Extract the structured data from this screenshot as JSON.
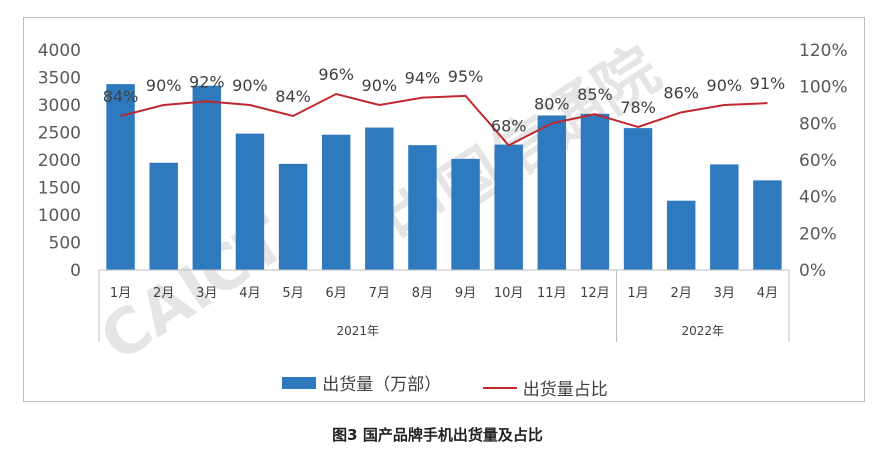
{
  "chart_data": {
    "type": "bar",
    "title": "",
    "caption": "图3   国产品牌手机出货量及占比",
    "categories": [
      "1月",
      "2月",
      "3月",
      "4月",
      "5月",
      "6月",
      "7月",
      "8月",
      "9月",
      "10月",
      "11月",
      "12月",
      "1月",
      "2月",
      "3月",
      "4月"
    ],
    "year_groups": [
      {
        "label": "2021年",
        "count": 12
      },
      {
        "label": "2022年",
        "count": 4
      }
    ],
    "series": [
      {
        "name": "出货量（万部）",
        "type": "bar",
        "axis": "left",
        "color": "#2f7abf",
        "values": [
          3380,
          1950,
          3350,
          2480,
          1930,
          2460,
          2590,
          2270,
          2020,
          2280,
          2810,
          2840,
          2580,
          1260,
          1920,
          1630
        ]
      },
      {
        "name": "出货量占比",
        "type": "line",
        "axis": "right",
        "color": "#c0282e",
        "values": [
          84,
          90,
          92,
          90,
          84,
          96,
          90,
          94,
          95,
          68,
          80,
          85,
          78,
          86,
          90,
          91
        ],
        "labels": [
          "84%",
          "90%",
          "92%",
          "90%",
          "84%",
          "96%",
          "90%",
          "94%",
          "95%",
          "68%",
          "80%",
          "85%",
          "78%",
          "86%",
          "90%",
          "91%"
        ]
      }
    ],
    "y_left": {
      "min": 0,
      "max": 4000,
      "ticks": [
        "0",
        "500",
        "1000",
        "1500",
        "2000",
        "2500",
        "3000",
        "3500",
        "4000"
      ]
    },
    "y_right": {
      "min": 0,
      "max": 120,
      "ticks": [
        "0%",
        "20%",
        "40%",
        "60%",
        "80%",
        "100%",
        "120%"
      ]
    },
    "grid": false,
    "legend_position": "bottom"
  },
  "watermark": {
    "latin": "CAICT",
    "cjk": "中国信通院"
  }
}
